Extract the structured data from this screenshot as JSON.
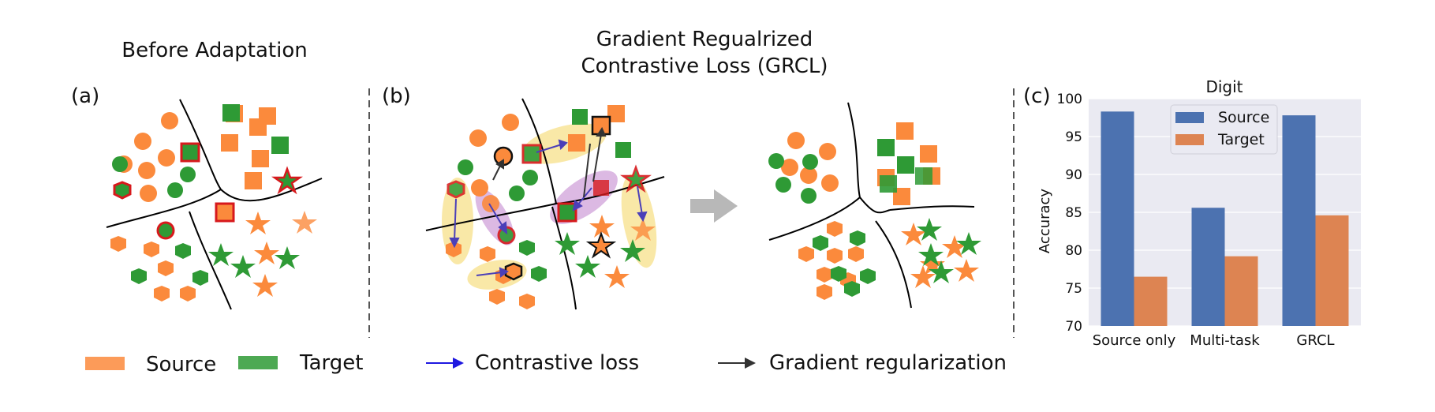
{
  "panel_a": {
    "label": "(a)",
    "title": "Before Adaptation"
  },
  "panel_b": {
    "label": "(b)",
    "title_line1": "Gradient Regualrized",
    "title_line2": "Contrastive Loss (GRCL)"
  },
  "panel_c": {
    "label": "(c)"
  },
  "legend": {
    "source": "Source",
    "target": "Target",
    "contrastive": "Contrastive loss",
    "gradient": "Gradient regularization"
  },
  "colors": {
    "source": "#fb8a3c",
    "target": "#2e9a35",
    "highlight_red": "#d7191c",
    "contrastive_arrow": "#4b3fb8",
    "gradient_arrow": "#333333",
    "yellow_ellipse": "#f7e08a",
    "purple_ellipse": "#c58bd0",
    "bar_source": "#4c72b0",
    "bar_target": "#dd8452",
    "plot_bg": "#eaeaf2"
  },
  "chart_data": {
    "type": "bar",
    "title": "Digit",
    "ylabel": "Accuracy",
    "xlabel": "",
    "categories": [
      "Source only",
      "Multi-task",
      "GRCL"
    ],
    "series": [
      {
        "name": "Source",
        "values": [
          98.3,
          85.6,
          97.8
        ]
      },
      {
        "name": "Target",
        "values": [
          76.5,
          79.2,
          84.6
        ]
      }
    ],
    "ylim": [
      70,
      100
    ],
    "yticks": [
      "70",
      "75",
      "80",
      "85",
      "90",
      "95",
      "100"
    ],
    "grid": true,
    "legend_position": "top-right"
  }
}
